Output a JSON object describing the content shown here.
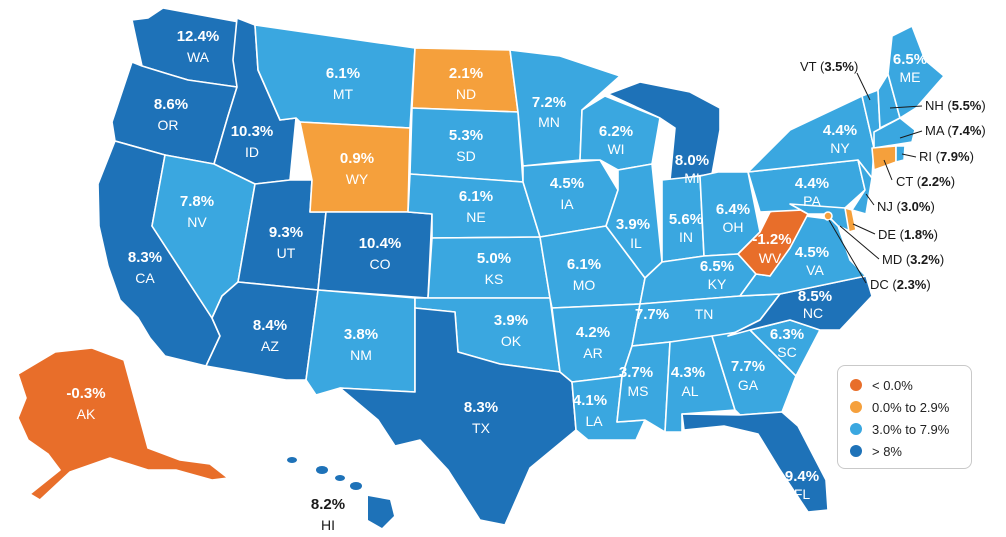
{
  "colors": {
    "negative": "#e86e2a",
    "low": "#f5a03c",
    "mid": "#3aa7e0",
    "high": "#1e72b8"
  },
  "states": {
    "WA": {
      "abbr": "WA",
      "value": "12.4%"
    },
    "OR": {
      "abbr": "OR",
      "value": "8.6%"
    },
    "CA": {
      "abbr": "CA",
      "value": "8.3%"
    },
    "ID": {
      "abbr": "ID",
      "value": "10.3%"
    },
    "NV": {
      "abbr": "NV",
      "value": "7.8%"
    },
    "UT": {
      "abbr": "UT",
      "value": "9.3%"
    },
    "AZ": {
      "abbr": "AZ",
      "value": "8.4%"
    },
    "MT": {
      "abbr": "MT",
      "value": "6.1%"
    },
    "WY": {
      "abbr": "WY",
      "value": "0.9%"
    },
    "CO": {
      "abbr": "CO",
      "value": "10.4%"
    },
    "NM": {
      "abbr": "NM",
      "value": "3.8%"
    },
    "ND": {
      "abbr": "ND",
      "value": "2.1%"
    },
    "SD": {
      "abbr": "SD",
      "value": "5.3%"
    },
    "NE": {
      "abbr": "NE",
      "value": "6.1%"
    },
    "KS": {
      "abbr": "KS",
      "value": "5.0%"
    },
    "OK": {
      "abbr": "OK",
      "value": "3.9%"
    },
    "TX": {
      "abbr": "TX",
      "value": "8.3%"
    },
    "MN": {
      "abbr": "MN",
      "value": "7.2%"
    },
    "IA": {
      "abbr": "IA",
      "value": "4.5%"
    },
    "MO": {
      "abbr": "MO",
      "value": "6.1%"
    },
    "AR": {
      "abbr": "AR",
      "value": "4.2%"
    },
    "LA": {
      "abbr": "LA",
      "value": "4.1%"
    },
    "WI": {
      "abbr": "WI",
      "value": "6.2%"
    },
    "IL": {
      "abbr": "IL",
      "value": "3.9%"
    },
    "MI": {
      "abbr": "MI",
      "value": "8.0%"
    },
    "IN": {
      "abbr": "IN",
      "value": "5.6%"
    },
    "OH": {
      "abbr": "OH",
      "value": "6.4%"
    },
    "KY": {
      "abbr": "KY",
      "value": "6.5%"
    },
    "TN": {
      "abbr": "TN",
      "value": "7.7%"
    },
    "MS": {
      "abbr": "MS",
      "value": "3.7%"
    },
    "AL": {
      "abbr": "AL",
      "value": "4.3%"
    },
    "GA": {
      "abbr": "GA",
      "value": "7.7%"
    },
    "FL": {
      "abbr": "FL",
      "value": "9.4%"
    },
    "SC": {
      "abbr": "SC",
      "value": "6.3%"
    },
    "NC": {
      "abbr": "NC",
      "value": "8.5%"
    },
    "VA": {
      "abbr": "VA",
      "value": "4.5%"
    },
    "WV": {
      "abbr": "WV",
      "value": "-1.2%"
    },
    "PA": {
      "abbr": "PA",
      "value": "4.4%"
    },
    "NY": {
      "abbr": "NY",
      "value": "4.4%"
    },
    "ME": {
      "abbr": "ME",
      "value": "6.5%"
    },
    "AK": {
      "abbr": "AK",
      "value": "-0.3%"
    },
    "HI": {
      "abbr": "HI",
      "value": "8.2%"
    }
  },
  "callouts": {
    "VT": {
      "abbr": "VT",
      "value": "3.5%"
    },
    "NH": {
      "abbr": "NH",
      "value": "5.5%"
    },
    "MA": {
      "abbr": "MA",
      "value": "7.4%"
    },
    "RI": {
      "abbr": "RI",
      "value": "7.9%"
    },
    "CT": {
      "abbr": "CT",
      "value": "2.2%"
    },
    "NJ": {
      "abbr": "NJ",
      "value": "3.0%"
    },
    "DE": {
      "abbr": "DE",
      "value": "1.8%"
    },
    "MD": {
      "abbr": "MD",
      "value": "3.2%"
    },
    "DC": {
      "abbr": "DC",
      "value": "2.3%"
    }
  },
  "legend": [
    {
      "label": "< 0.0%",
      "color": "#e86e2a"
    },
    {
      "label": "0.0% to 2.9%",
      "color": "#f5a03c"
    },
    {
      "label": "3.0% to 7.9%",
      "color": "#3aa7e0"
    },
    {
      "label": "> 8%",
      "color": "#1e72b8"
    }
  ]
}
